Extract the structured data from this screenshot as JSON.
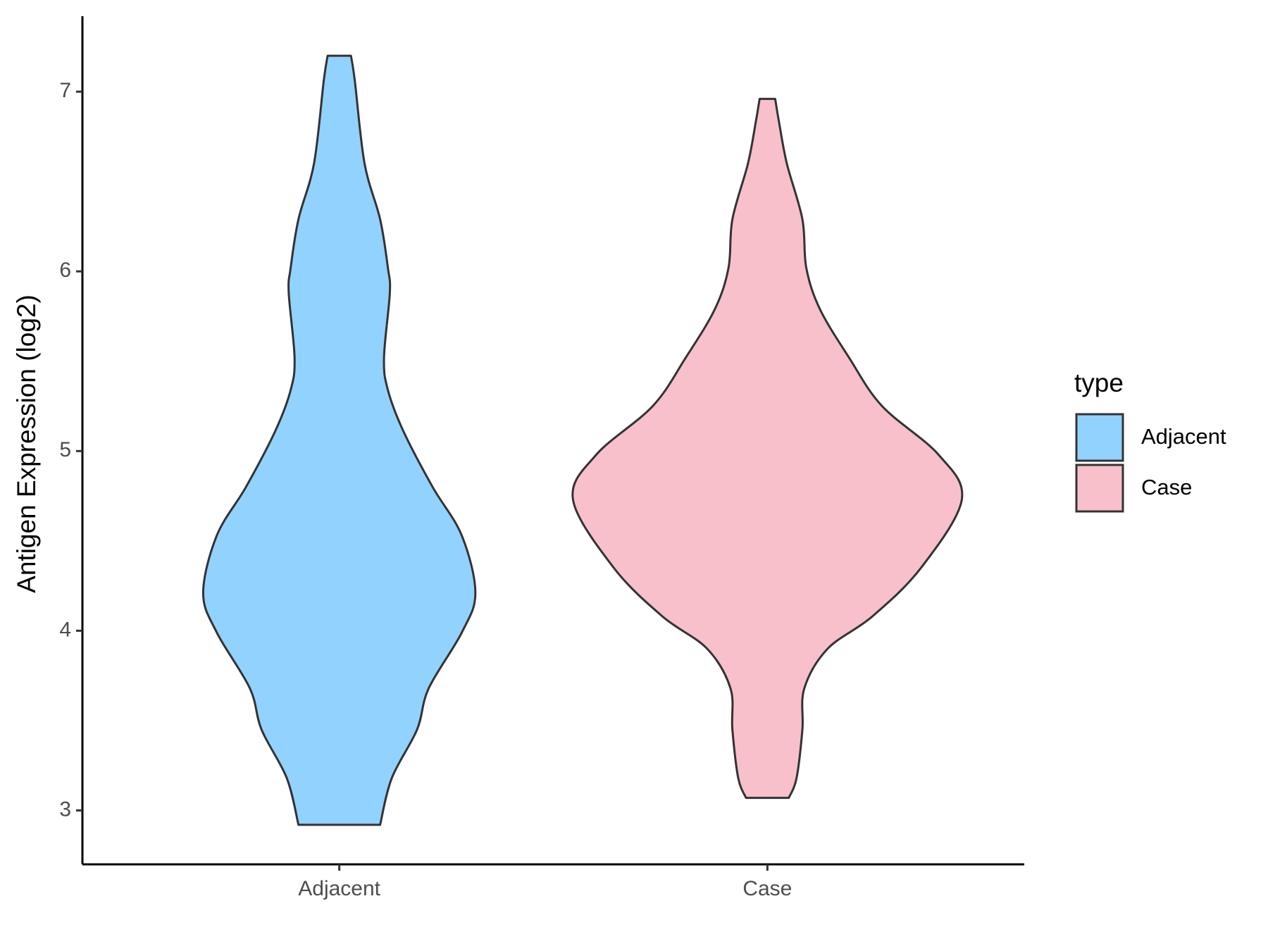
{
  "chart_data": {
    "type": "violin",
    "y_label": "Antigen Expression (log2)",
    "categories": [
      "Adjacent",
      "Case"
    ],
    "legend_title": "type",
    "legend_position": "right",
    "series": [
      {
        "name": "Adjacent",
        "color": "#92d2fe",
        "y": [
          2.92,
          3.18,
          3.45,
          3.68,
          3.99,
          4.21,
          4.53,
          4.8,
          5.11,
          5.34,
          5.52,
          5.88,
          6.02,
          6.29,
          6.6,
          7.06,
          7.2
        ],
        "width": [
          0.21,
          0.27,
          0.4,
          0.46,
          0.63,
          0.7,
          0.63,
          0.48,
          0.33,
          0.25,
          0.23,
          0.26,
          0.25,
          0.21,
          0.13,
          0.08,
          0.06
        ]
      },
      {
        "name": "Case",
        "color": "#f7c0cb",
        "y": [
          3.07,
          3.18,
          3.45,
          3.68,
          3.9,
          4.08,
          4.35,
          4.73,
          4.98,
          5.25,
          5.52,
          5.79,
          6.02,
          6.29,
          6.6,
          6.83,
          6.96
        ],
        "width": [
          0.11,
          0.15,
          0.18,
          0.19,
          0.31,
          0.54,
          0.79,
          1.0,
          0.88,
          0.59,
          0.42,
          0.27,
          0.2,
          0.18,
          0.1,
          0.06,
          0.04
        ]
      }
    ],
    "ylim": [
      2.7,
      7.42
    ],
    "yticks": [
      3,
      4,
      5,
      6,
      7
    ]
  }
}
